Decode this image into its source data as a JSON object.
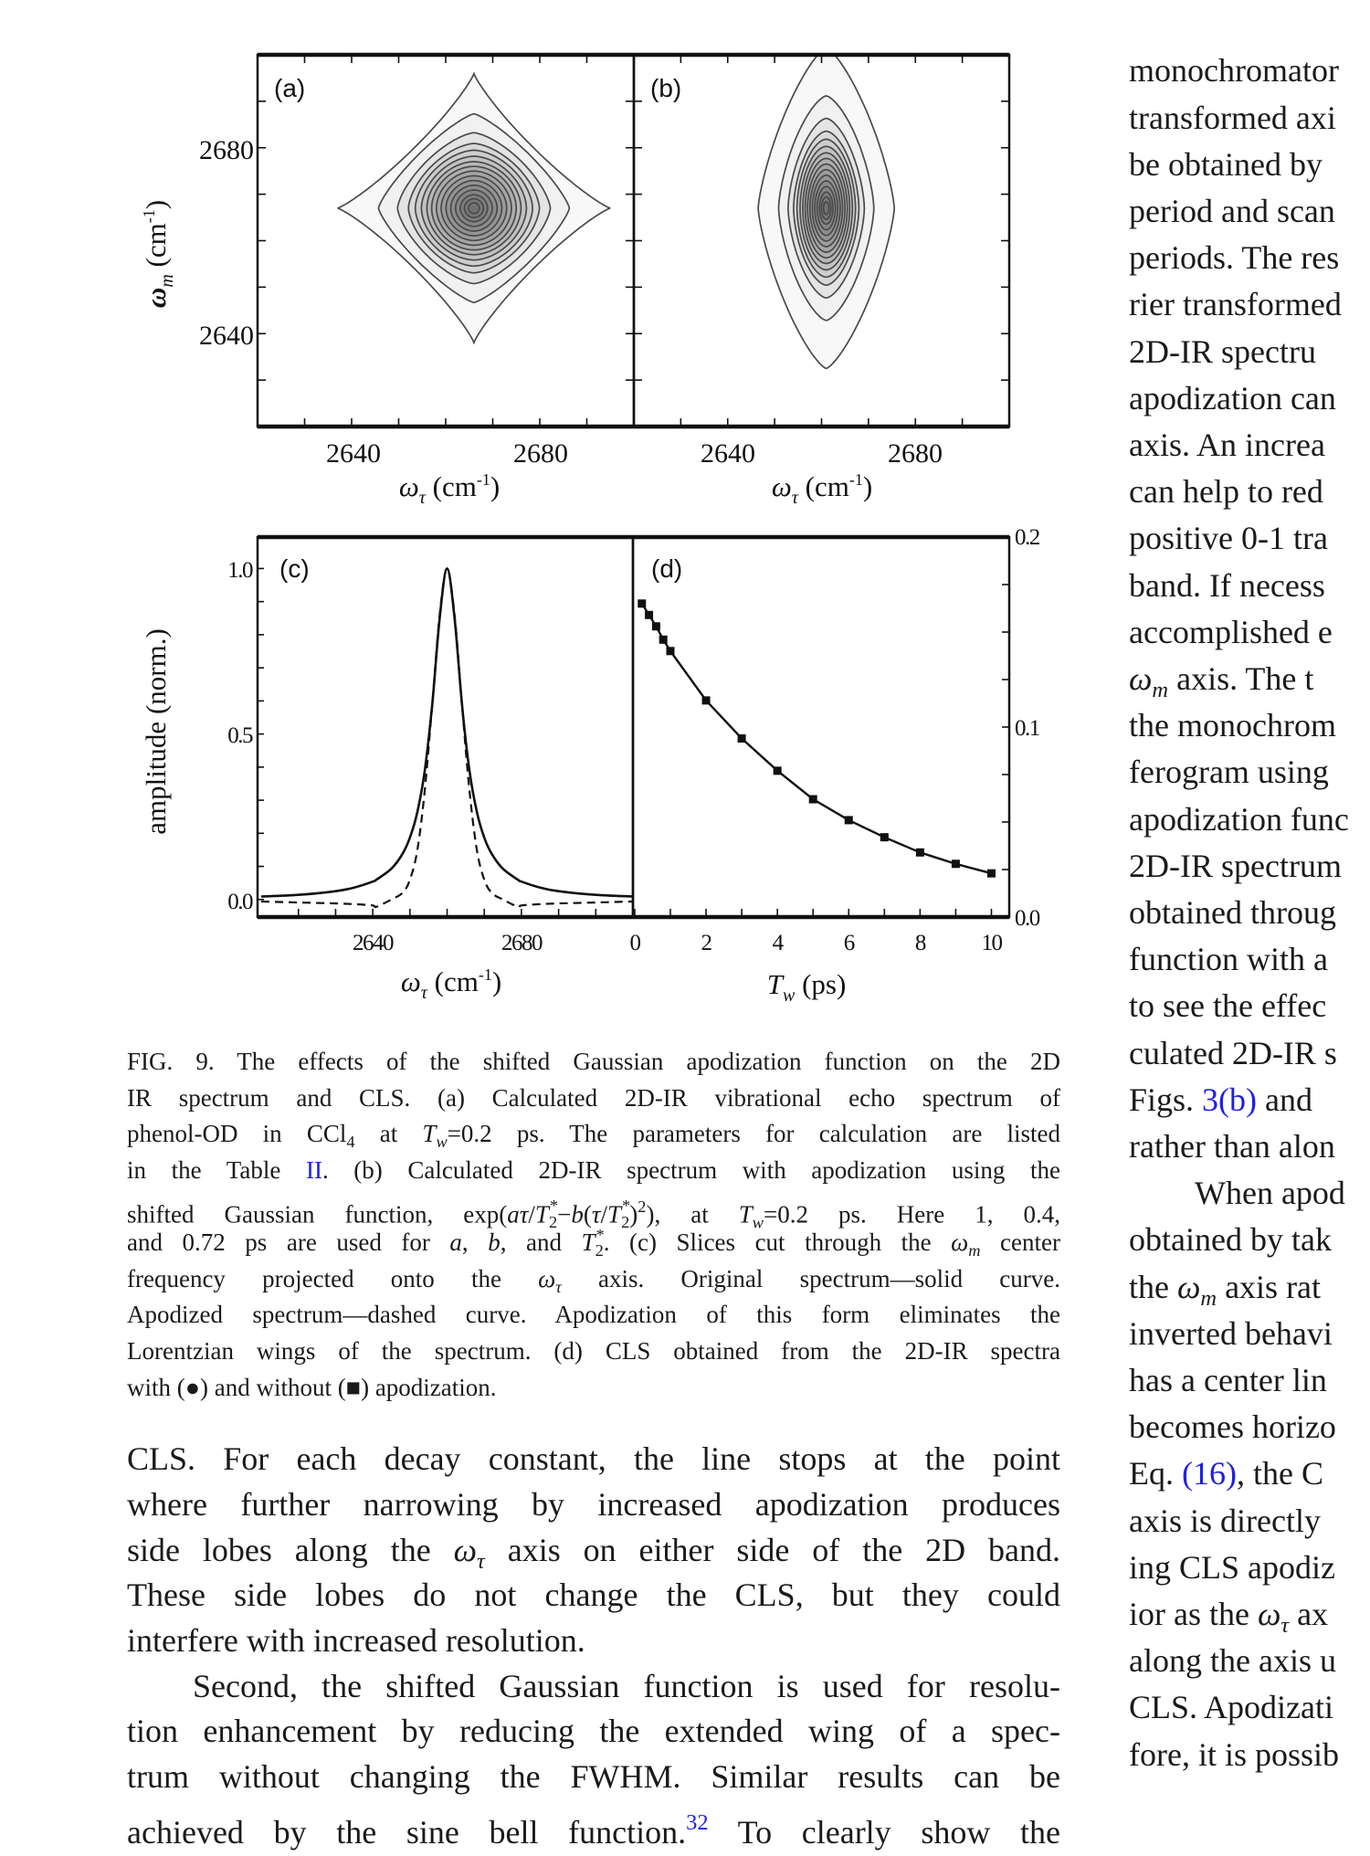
{
  "figure": {
    "panel_labels": [
      "(a)",
      "(b)",
      "(c)",
      "(d)"
    ],
    "axis_labels": {
      "omega_m": {
        "sym": "ω",
        "sub": "m",
        "unit": " (cm",
        "exp": "-1",
        "close": ")"
      },
      "omega_tau": {
        "sym": "ω",
        "sub": "τ",
        "unit": " (cm",
        "exp": "-1",
        "close": ")"
      },
      "amplitude": "amplitude (norm.)",
      "tw": {
        "sym": "T",
        "sub": "w",
        "unit": " (ps)"
      }
    }
  },
  "chart_data": [
    {
      "panel": "(a)",
      "type": "contour",
      "xlabel": "ωτ (cm-1)",
      "ylabel": "ωm (cm-1)",
      "xlim": [
        2620,
        2700
      ],
      "ylim": [
        2620,
        2700
      ],
      "xticklabels": [
        "2640",
        "2680"
      ],
      "yticklabels": [
        "2680",
        "2640"
      ],
      "peak_center": [
        2666,
        2667
      ],
      "outer_contour_halfwidth": [
        29,
        29
      ],
      "contour_count": 16
    },
    {
      "panel": "(b)",
      "type": "contour",
      "xlabel": "ωτ (cm-1)",
      "xlim": [
        2620,
        2700
      ],
      "ylim": [
        2620,
        2700
      ],
      "xticklabels": [
        "2640",
        "2680"
      ],
      "peak_center": [
        2661,
        2667
      ],
      "outer_contour_halfwidth": [
        14.5,
        34.5
      ],
      "contour_count": 16
    },
    {
      "panel": "(c)",
      "type": "line",
      "xlabel": "ωτ (cm-1)",
      "ylabel": "amplitude (norm.)",
      "xlim": [
        2609,
        2710
      ],
      "ylim": [
        -0.053,
        1.095
      ],
      "xticklabels": [
        "2640",
        "2680"
      ],
      "yticklabels": [
        "1.0",
        "0.5",
        "0.0"
      ],
      "x": [
        2610,
        2620,
        2630,
        2635,
        2640,
        2641,
        2645,
        2648,
        2650,
        2652,
        2654,
        2656,
        2658,
        2660,
        2662,
        2664,
        2666,
        2668,
        2670,
        2672,
        2675,
        2679,
        2680,
        2685,
        2690,
        2700,
        2710
      ],
      "series": [
        {
          "style": "solid",
          "values": [
            0.009,
            0.014,
            0.025,
            0.036,
            0.054,
            0.06,
            0.093,
            0.138,
            0.187,
            0.265,
            0.39,
            0.59,
            0.85,
            1.0,
            0.85,
            0.59,
            0.39,
            0.265,
            0.187,
            0.138,
            0.093,
            0.06,
            0.054,
            0.036,
            0.025,
            0.014,
            0.009
          ]
        },
        {
          "style": "dashed",
          "values": [
            -0.006,
            -0.009,
            -0.012,
            -0.014,
            -0.018,
            -0.022,
            0.0,
            0.02,
            0.06,
            0.15,
            0.33,
            0.59,
            0.86,
            1.0,
            0.86,
            0.59,
            0.33,
            0.15,
            0.06,
            0.02,
            0.0,
            -0.022,
            -0.018,
            -0.014,
            -0.012,
            -0.009,
            -0.006
          ]
        }
      ]
    },
    {
      "panel": "(d)",
      "type": "line",
      "xlabel": "Tw (ps)",
      "ylabel_side": "right",
      "xlim": [
        -0.05,
        10.5
      ],
      "ylim": [
        0,
        0.2
      ],
      "xticklabels": [
        "0",
        "2",
        "4",
        "6",
        "8",
        "10"
      ],
      "yticklabels": [
        "0.2",
        "0.1",
        "0.0"
      ],
      "x": [
        0.2,
        0.4,
        0.6,
        0.8,
        1,
        2,
        3,
        4,
        5,
        6,
        7,
        8,
        9,
        10
      ],
      "series": [
        {
          "marker": "square",
          "values": [
            0.165,
            0.159,
            0.153,
            0.146,
            0.14,
            0.114,
            0.094,
            0.077,
            0.062,
            0.051,
            0.042,
            0.034,
            0.028,
            0.023
          ]
        }
      ]
    }
  ],
  "caption": [
    [
      "FIG. 9. The effects of the shifted Gaussian apodization function on the 2D"
    ],
    [
      "IR spectrum and CLS. (a) Calculated 2D-IR vibrational echo spectrum of"
    ],
    [
      "phenol-OD in CCl",
      {
        "s": "sub",
        "t": "4"
      },
      " at ",
      {
        "s": "i",
        "t": "T"
      },
      {
        "s": "isub",
        "t": "w"
      },
      "=0.2 ps. The parameters for calculation are listed"
    ],
    [
      "in the Table ",
      {
        "s": "link",
        "t": "II"
      },
      ". (b) Calculated 2D-IR spectrum with apodization using the"
    ],
    [
      "shifted Gaussian function, exp(",
      {
        "s": "i",
        "t": "aτ"
      },
      "/",
      {
        "s": "i",
        "t": "T"
      },
      {
        "s": "ss",
        "t": "2",
        "sup": "*"
      },
      "−",
      {
        "s": "i",
        "t": "b"
      },
      "(",
      {
        "s": "i",
        "t": "τ"
      },
      "/",
      {
        "s": "i",
        "t": "T"
      },
      {
        "s": "ss",
        "t": "2",
        "sup": "*"
      },
      ")",
      {
        "s": "sup",
        "t": "2"
      },
      "), at ",
      {
        "s": "i",
        "t": "T"
      },
      {
        "s": "isub",
        "t": "w"
      },
      "=0.2 ps. Here 1, 0.4,"
    ],
    [
      "and 0.72 ps are used for ",
      {
        "s": "i",
        "t": "a"
      },
      ", ",
      {
        "s": "i",
        "t": "b"
      },
      ", and ",
      {
        "s": "i",
        "t": "T"
      },
      {
        "s": "ss",
        "t": "2",
        "sup": "*"
      },
      ". (c) Slices cut through the ",
      {
        "s": "i",
        "t": "ω"
      },
      {
        "s": "isub",
        "t": "m"
      },
      " center"
    ],
    [
      "frequency projected onto the ",
      {
        "s": "i",
        "t": "ω"
      },
      {
        "s": "isub",
        "t": "τ"
      },
      " axis. Original spectrum—solid curve."
    ],
    [
      "Apodized spectrum—dashed curve. Apodization of this form eliminates the"
    ],
    [
      "Lorentzian wings of the spectrum. (d) CLS obtained from the 2D-IR spectra"
    ],
    [
      "with (●) and without (■) apodization."
    ]
  ],
  "body": [
    [
      "CLS. For each decay constant, the line stops at the point"
    ],
    [
      "where further narrowing by increased apodization produces"
    ],
    [
      "side lobes along the ",
      {
        "s": "i",
        "t": "ω"
      },
      {
        "s": "isub",
        "t": "τ"
      },
      " axis on either side of the 2D band."
    ],
    [
      "These side lobes do not change the CLS, but they could"
    ],
    [
      "interfere with increased resolution."
    ],
    [
      "Second, the shifted Gaussian function is used for resolu-"
    ],
    [
      "tion enhancement by reducing the extended wing of a spec-"
    ],
    [
      "trum without changing the FWHM. Similar results can be"
    ],
    [
      "achieved by the sine bell function.",
      {
        "s": "suplink",
        "t": "32"
      },
      " To clearly show the"
    ]
  ],
  "right_column": [
    [
      "monochromator"
    ],
    [
      "transformed axi"
    ],
    [
      "be obtained by"
    ],
    [
      "period and scan"
    ],
    [
      "periods. The res"
    ],
    [
      "rier  transformed"
    ],
    [
      "2D-IR   spectru"
    ],
    [
      "apodization can"
    ],
    [
      "axis. An increa"
    ],
    [
      "can help to red"
    ],
    [
      "positive 0-1 tra"
    ],
    [
      "band. If necess"
    ],
    [
      "accomplished e"
    ],
    [
      {
        "s": "i",
        "t": "ω"
      },
      {
        "s": "isub",
        "t": "m"
      },
      " axis. The t"
    ],
    [
      "the monochrom"
    ],
    [
      "ferogram   using"
    ],
    [
      "apodization func"
    ],
    [
      "2D-IR spectrum"
    ],
    [
      "obtained throug"
    ],
    [
      "function with a"
    ],
    [
      "to see the effec"
    ],
    [
      "culated 2D-IR s"
    ],
    [
      "Figs. ",
      {
        "s": "link",
        "t": "3(b)"
      },
      " and"
    ],
    [
      "rather than alon"
    ],
    [
      "When apod"
    ],
    [
      "obtained by tak"
    ],
    [
      "the ",
      {
        "s": "i",
        "t": "ω"
      },
      {
        "s": "isub",
        "t": "m"
      },
      " axis rat"
    ],
    [
      "inverted behavi"
    ],
    [
      "has a center lin"
    ],
    [
      "becomes horizo"
    ],
    [
      "Eq. ",
      {
        "s": "link",
        "t": "(16)"
      },
      ", the C"
    ],
    [
      "axis is directly"
    ],
    [
      "ing CLS apodiz"
    ],
    [
      "ior as the ",
      {
        "s": "i",
        "t": "ω"
      },
      {
        "s": "isub",
        "t": "τ"
      },
      " ax"
    ],
    [
      "along the axis u"
    ],
    [
      "CLS. Apodizati"
    ],
    [
      "fore, it is possib"
    ]
  ]
}
